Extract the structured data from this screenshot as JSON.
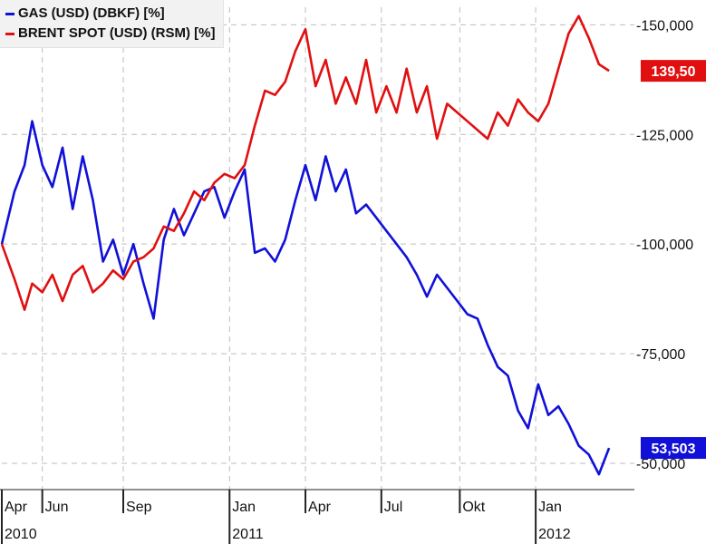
{
  "chart_data": {
    "type": "line",
    "legend_position": "top-left",
    "grid": true,
    "y_axis": {
      "ticks": [
        50000,
        75000,
        100000,
        125000,
        150000
      ],
      "tick_labels": [
        "-50,000",
        "-75,000",
        "-100,000",
        "-125,000",
        "-150,000"
      ],
      "ylim": [
        44000,
        154000
      ]
    },
    "x_axis": {
      "ylim_note": "",
      "ticks": [
        {
          "label": "Apr",
          "year": "2010",
          "t": 0.0
        },
        {
          "label": "Jun",
          "year": "",
          "t": 1.6
        },
        {
          "label": "Sep",
          "year": "",
          "t": 4.8
        },
        {
          "label": "Jan",
          "year": "2011",
          "t": 9.0
        },
        {
          "label": "Apr",
          "year": "",
          "t": 12.0
        },
        {
          "label": "Jul",
          "year": "",
          "t": 15.0
        },
        {
          "label": "Okt",
          "year": "",
          "t": 18.1
        },
        {
          "label": "Jan",
          "year": "2012",
          "t": 21.1
        }
      ],
      "xlim": [
        0,
        25.0
      ]
    },
    "series": [
      {
        "name": "GAS (USD) (DBKF) [%]",
        "color": "#1010d8",
        "last_label": "53,503",
        "x": [
          0,
          0.5,
          0.9,
          1.2,
          1.6,
          2.0,
          2.4,
          2.8,
          3.2,
          3.6,
          4.0,
          4.4,
          4.8,
          5.2,
          5.6,
          6.0,
          6.4,
          6.8,
          7.2,
          7.6,
          8.0,
          8.4,
          8.8,
          9.2,
          9.6,
          10.0,
          10.4,
          10.8,
          11.2,
          11.6,
          12.0,
          12.4,
          12.8,
          13.2,
          13.6,
          14.0,
          14.4,
          14.8,
          15.2,
          15.6,
          16.0,
          16.4,
          16.8,
          17.2,
          17.6,
          18.0,
          18.4,
          18.8,
          19.2,
          19.6,
          20.0,
          20.4,
          20.8,
          21.2,
          21.6,
          22.0,
          22.4,
          22.8,
          23.2,
          23.6,
          24.0
        ],
        "y": [
          100000,
          112000,
          118000,
          128000,
          118000,
          113000,
          122000,
          108000,
          120000,
          110000,
          96000,
          101000,
          93000,
          100000,
          91000,
          83000,
          101000,
          108000,
          102000,
          107000,
          112000,
          113000,
          106000,
          112000,
          117000,
          98000,
          99000,
          96000,
          101000,
          110000,
          118000,
          110000,
          120000,
          112000,
          117000,
          107000,
          109000,
          106000,
          103000,
          100000,
          97000,
          93000,
          88000,
          93000,
          90000,
          87000,
          84000,
          83000,
          77000,
          72000,
          70000,
          62000,
          58000,
          68000,
          61000,
          63000,
          59000,
          54000,
          52000,
          47500,
          53500
        ]
      },
      {
        "name": "BRENT SPOT (USD) (RSM) [%]",
        "color": "#e01010",
        "last_label": "139,50",
        "x": [
          0,
          0.5,
          0.9,
          1.2,
          1.6,
          2.0,
          2.4,
          2.8,
          3.2,
          3.6,
          4.0,
          4.4,
          4.8,
          5.2,
          5.6,
          6.0,
          6.4,
          6.8,
          7.2,
          7.6,
          8.0,
          8.4,
          8.8,
          9.2,
          9.6,
          10.0,
          10.4,
          10.8,
          11.2,
          11.6,
          12.0,
          12.4,
          12.8,
          13.2,
          13.6,
          14.0,
          14.4,
          14.8,
          15.2,
          15.6,
          16.0,
          16.4,
          16.8,
          17.2,
          17.6,
          18.0,
          18.4,
          18.8,
          19.2,
          19.6,
          20.0,
          20.4,
          20.8,
          21.2,
          21.6,
          22.0,
          22.4,
          22.8,
          23.2,
          23.6,
          24.0
        ],
        "y": [
          100000,
          92000,
          85000,
          91000,
          89000,
          93000,
          87000,
          93000,
          95000,
          89000,
          91000,
          94000,
          92000,
          96000,
          97000,
          99000,
          104000,
          103000,
          107000,
          112000,
          110000,
          114000,
          116000,
          115000,
          118000,
          127000,
          135000,
          134000,
          137000,
          144000,
          149000,
          136000,
          142000,
          132000,
          138000,
          132000,
          142000,
          130000,
          136000,
          130000,
          140000,
          130000,
          136000,
          124000,
          132000,
          130000,
          128000,
          126000,
          124000,
          130000,
          127000,
          133000,
          130000,
          128000,
          132000,
          140000,
          148000,
          152000,
          147000,
          141000,
          139500
        ]
      }
    ]
  }
}
